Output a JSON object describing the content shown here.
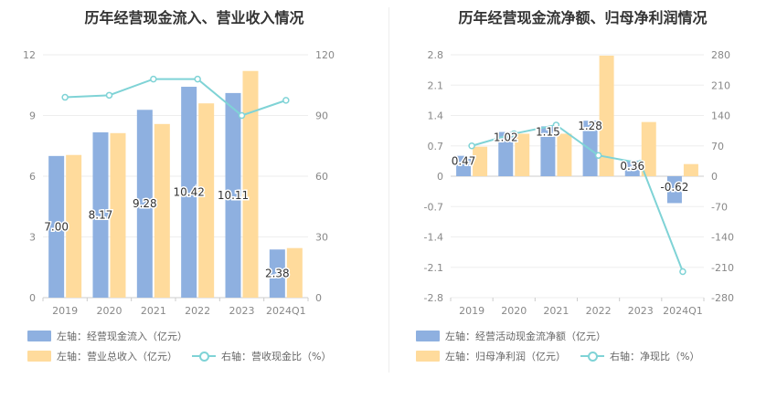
{
  "colors": {
    "bar_left": "#8eb0e0",
    "bar_right": "#ffdb9c",
    "line": "#7fd3d6",
    "axis_text": "#888888",
    "grid": "#eeeeee"
  },
  "chart_data": [
    {
      "type": "bar",
      "title": "历年经营现金流入、营业收入情况",
      "categories": [
        "2019",
        "2020",
        "2021",
        "2022",
        "2023",
        "2024Q1"
      ],
      "y_left": {
        "ticks": [
          "0",
          "3",
          "6",
          "9",
          "12"
        ],
        "ylim": [
          0,
          12
        ]
      },
      "y_right": {
        "ticks": [
          "0",
          "30",
          "60",
          "90",
          "120"
        ],
        "ylim": [
          0,
          120
        ]
      },
      "series": [
        {
          "name": "左轴：经营现金流入（亿元）",
          "type": "bar",
          "axis": "left",
          "values": [
            7.0,
            8.17,
            9.28,
            10.42,
            10.11,
            2.38
          ],
          "labels": [
            "7.00",
            "8.17",
            "9.28",
            "10.42",
            "10.11",
            "2.38"
          ]
        },
        {
          "name": "左轴：营业总收入（亿元）",
          "type": "bar",
          "axis": "left",
          "values": [
            7.05,
            8.13,
            8.58,
            9.6,
            11.2,
            2.45
          ]
        },
        {
          "name": "右轴：营收现金比（%）",
          "type": "line",
          "axis": "right",
          "values": [
            99,
            100,
            108,
            108,
            90,
            97.5
          ]
        }
      ],
      "legend": [
        [
          "左轴：经营现金流入（亿元）"
        ],
        [
          "左轴：营业总收入（亿元）",
          "右轴：营收现金比（%）"
        ]
      ]
    },
    {
      "type": "bar",
      "title": "历年经营现金流净额、归母净利润情况",
      "categories": [
        "2019",
        "2020",
        "2021",
        "2022",
        "2023",
        "2024Q1"
      ],
      "y_left": {
        "ticks": [
          "-2.8",
          "-2.1",
          "-1.4",
          "-0.7",
          "0",
          "0.7",
          "1.4",
          "2.1",
          "2.8"
        ],
        "ylim": [
          -2.8,
          2.8
        ]
      },
      "y_right": {
        "ticks": [
          "-280",
          "-210",
          "-140",
          "-70",
          "0",
          "70",
          "140",
          "210",
          "280"
        ],
        "ylim": [
          -280,
          280
        ]
      },
      "series": [
        {
          "name": "左轴：经营活动现金流净额（亿元）",
          "type": "bar",
          "axis": "left",
          "values": [
            0.47,
            1.02,
            1.15,
            1.28,
            0.36,
            -0.62
          ],
          "labels": [
            "0.47",
            "1.02",
            "1.15",
            "1.28",
            "0.36",
            "-0.62"
          ]
        },
        {
          "name": "左轴：归母净利润（亿元）",
          "type": "bar",
          "axis": "left",
          "values": [
            0.68,
            0.98,
            0.98,
            2.78,
            1.25,
            0.28
          ]
        },
        {
          "name": "右轴：净现比（%）",
          "type": "line",
          "axis": "right",
          "values": [
            70,
            98,
            118,
            48,
            30,
            -220
          ]
        }
      ],
      "legend": [
        [
          "左轴：经营活动现金流净额（亿元）"
        ],
        [
          "左轴：归母净利润（亿元）",
          "右轴：净现比（%）"
        ]
      ]
    }
  ]
}
